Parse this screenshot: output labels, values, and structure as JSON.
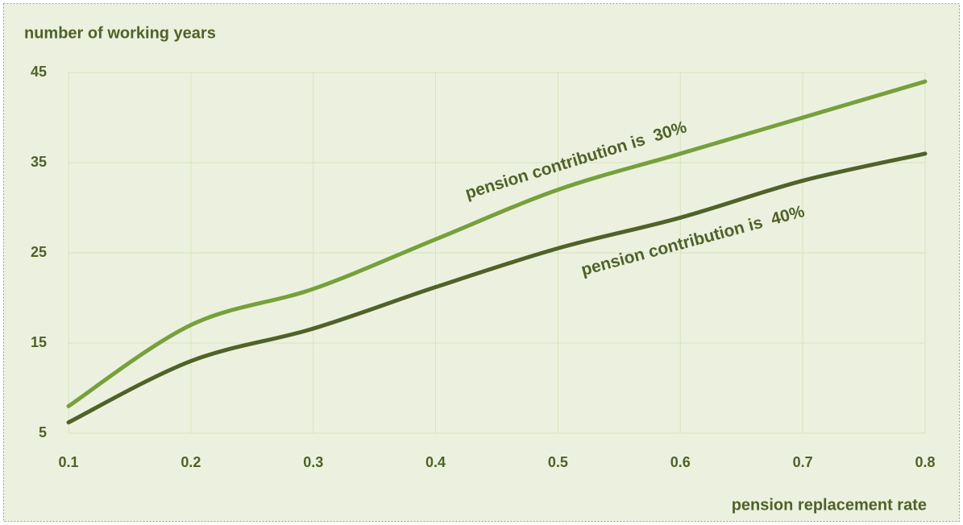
{
  "chart_data": {
    "type": "line",
    "ylabel": "number of working years",
    "xlabel": "pension replacement rate",
    "x": [
      0.1,
      0.2,
      0.3,
      0.4,
      0.5,
      0.6,
      0.7,
      0.8
    ],
    "series": [
      {
        "name": "pension contribution is  30%",
        "color": "#77a03c",
        "values": [
          8,
          17,
          21,
          26.5,
          32,
          36,
          40,
          44
        ]
      },
      {
        "name": "pension contribution is  40%",
        "color": "#4f6228",
        "values": [
          6.2,
          13,
          16.6,
          21.2,
          25.5,
          28.9,
          33,
          36
        ]
      }
    ],
    "xlim": [
      0.1,
      0.8
    ],
    "xticks": [
      0.1,
      0.2,
      0.3,
      0.4,
      0.5,
      0.6,
      0.7,
      0.8
    ],
    "ylim": [
      5,
      45
    ],
    "yticks": [
      5,
      15,
      25,
      35,
      45
    ],
    "grid": true
  }
}
